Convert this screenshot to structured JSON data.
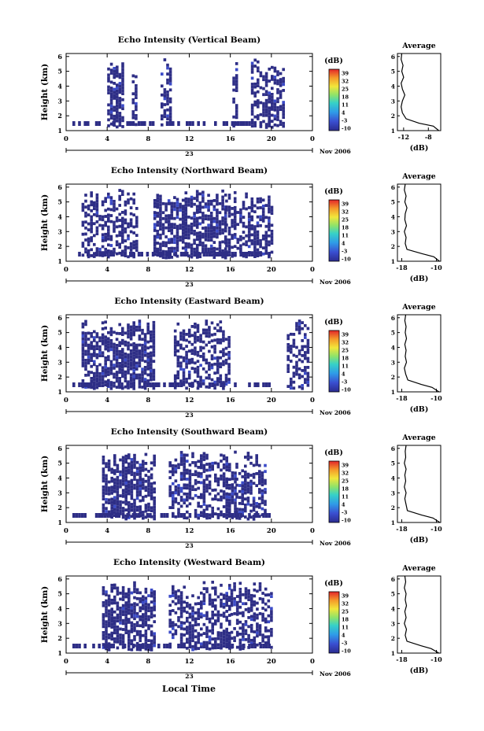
{
  "figure": {
    "bottom_xlabel": "Local Time",
    "date_label": "Nov 2006",
    "day_label": "23",
    "colorbar_unit": "(dB)",
    "colorbar_ticks": [
      "39",
      "32",
      "25",
      "18",
      "11",
      "4",
      "-3",
      "-10"
    ],
    "average_title": "Average",
    "average_xunit": "(dB)",
    "ylabel": "Height (km)"
  },
  "chart_data": [
    {
      "type": "heatmap",
      "title": "Echo Intensity (Vertical Beam)",
      "ylabel": "Height (km)",
      "xlim": [
        0,
        24
      ],
      "xticks": [
        "0",
        "4",
        "8",
        "12",
        "16",
        "20",
        "0"
      ],
      "ylim": [
        1,
        6.2
      ],
      "yticks": [
        "1",
        "2",
        "3",
        "4",
        "5",
        "6"
      ],
      "colorbar": {
        "unit": "(dB)",
        "range": [
          -10,
          39
        ]
      },
      "activity_hours": [
        [
          4.0,
          5.6
        ],
        [
          6.4,
          6.7
        ],
        [
          9.2,
          10.3
        ],
        [
          16.2,
          16.7
        ],
        [
          18.0,
          21.2
        ]
      ],
      "average": {
        "title": "Average",
        "xlabel": "(dB)",
        "xticks": [
          "-12",
          "-8"
        ],
        "xlim": [
          -13,
          -6
        ],
        "profile": [
          [
            1.0,
            -6.3
          ],
          [
            1.3,
            -7.2
          ],
          [
            1.5,
            -9.5
          ],
          [
            1.8,
            -11.6
          ],
          [
            2.2,
            -12.2
          ],
          [
            2.6,
            -12.4
          ],
          [
            3.0,
            -12.2
          ],
          [
            3.4,
            -11.8
          ],
          [
            3.8,
            -12.2
          ],
          [
            4.2,
            -12.4
          ],
          [
            4.6,
            -12.0
          ],
          [
            5.0,
            -12.3
          ],
          [
            5.4,
            -12.1
          ],
          [
            5.8,
            -12.4
          ],
          [
            6.2,
            -12.3
          ]
        ]
      }
    },
    {
      "type": "heatmap",
      "title": "Echo Intensity (Northward Beam)",
      "ylabel": "Height (km)",
      "xlim": [
        0,
        24
      ],
      "xticks": [
        "0",
        "4",
        "8",
        "12",
        "16",
        "20",
        "0"
      ],
      "ylim": [
        1,
        6.2
      ],
      "yticks": [
        "1",
        "2",
        "3",
        "4",
        "5",
        "6"
      ],
      "colorbar": {
        "unit": "(dB)",
        "range": [
          -10,
          39
        ]
      },
      "activity_hours": [
        [
          8.5,
          15.5
        ],
        [
          1.5,
          7.0
        ],
        [
          15.5,
          20.0
        ]
      ],
      "average": {
        "title": "Average",
        "xlabel": "(dB)",
        "xticks": [
          "-18",
          "-10"
        ],
        "xlim": [
          -19,
          -9
        ],
        "profile": [
          [
            1.0,
            -9.3
          ],
          [
            1.3,
            -10.6
          ],
          [
            1.5,
            -13.2
          ],
          [
            1.8,
            -16.8
          ],
          [
            2.2,
            -17.2
          ],
          [
            2.6,
            -17.0
          ],
          [
            3.0,
            -17.4
          ],
          [
            3.4,
            -16.9
          ],
          [
            3.8,
            -17.3
          ],
          [
            4.2,
            -17.2
          ],
          [
            4.6,
            -16.8
          ],
          [
            5.0,
            -17.3
          ],
          [
            5.4,
            -17.0
          ],
          [
            5.8,
            -17.4
          ],
          [
            6.2,
            -17.2
          ]
        ]
      }
    },
    {
      "type": "heatmap",
      "title": "Echo Intensity (Eastward Beam)",
      "ylabel": "Height (km)",
      "xlim": [
        0,
        24
      ],
      "xticks": [
        "0",
        "4",
        "8",
        "12",
        "16",
        "20",
        "0"
      ],
      "ylim": [
        1,
        6.2
      ],
      "yticks": [
        "1",
        "2",
        "3",
        "4",
        "5",
        "6"
      ],
      "colorbar": {
        "unit": "(dB)",
        "range": [
          -10,
          39
        ]
      },
      "activity_hours": [
        [
          1.5,
          8.5
        ],
        [
          10.5,
          16.0
        ],
        [
          21.5,
          23.5
        ]
      ],
      "average": {
        "title": "Average",
        "xlabel": "(dB)",
        "xticks": [
          "-18",
          "-10"
        ],
        "xlim": [
          -19,
          -9
        ],
        "profile": [
          [
            1.0,
            -9.4
          ],
          [
            1.3,
            -11.0
          ],
          [
            1.5,
            -13.5
          ],
          [
            1.8,
            -16.6
          ],
          [
            2.2,
            -17.1
          ],
          [
            2.6,
            -17.4
          ],
          [
            3.0,
            -16.9
          ],
          [
            3.4,
            -17.2
          ],
          [
            3.8,
            -17.0
          ],
          [
            4.2,
            -17.3
          ],
          [
            4.6,
            -16.9
          ],
          [
            5.0,
            -17.2
          ],
          [
            5.4,
            -17.0
          ],
          [
            5.8,
            -17.3
          ],
          [
            6.2,
            -17.1
          ]
        ]
      }
    },
    {
      "type": "heatmap",
      "title": "Echo Intensity (Southward Beam)",
      "ylabel": "Height (km)",
      "xlim": [
        0,
        24
      ],
      "xticks": [
        "0",
        "4",
        "8",
        "12",
        "16",
        "20",
        "0"
      ],
      "ylim": [
        1,
        6.2
      ],
      "yticks": [
        "1",
        "2",
        "3",
        "4",
        "5",
        "6"
      ],
      "colorbar": {
        "unit": "(dB)",
        "range": [
          -10,
          39
        ]
      },
      "activity_hours": [
        [
          3.5,
          8.5
        ],
        [
          10.0,
          16.5
        ],
        [
          16.5,
          19.5
        ]
      ],
      "average": {
        "title": "Average",
        "xlabel": "(dB)",
        "xticks": [
          "-18",
          "-10"
        ],
        "xlim": [
          -19,
          -9
        ],
        "profile": [
          [
            1.0,
            -9.2
          ],
          [
            1.3,
            -10.8
          ],
          [
            1.5,
            -13.4
          ],
          [
            1.8,
            -16.7
          ],
          [
            2.2,
            -17.0
          ],
          [
            2.6,
            -17.3
          ],
          [
            3.0,
            -17.0
          ],
          [
            3.4,
            -17.4
          ],
          [
            3.8,
            -17.1
          ],
          [
            4.2,
            -17.3
          ],
          [
            4.6,
            -17.0
          ],
          [
            5.0,
            -17.4
          ],
          [
            5.4,
            -17.1
          ],
          [
            5.8,
            -17.2
          ],
          [
            6.2,
            -17.0
          ]
        ]
      }
    },
    {
      "type": "heatmap",
      "title": "Echo Intensity (Westward Beam)",
      "ylabel": "Height (km)",
      "xlabel": "Local Time",
      "xlim": [
        0,
        24
      ],
      "xticks": [
        "0",
        "4",
        "8",
        "12",
        "16",
        "20",
        "0"
      ],
      "ylim": [
        1,
        6.2
      ],
      "yticks": [
        "1",
        "2",
        "3",
        "4",
        "5",
        "6"
      ],
      "colorbar": {
        "unit": "(dB)",
        "range": [
          -10,
          39
        ]
      },
      "activity_hours": [
        [
          3.5,
          8.5
        ],
        [
          10.0,
          16.0
        ],
        [
          16.0,
          20.0
        ]
      ],
      "average": {
        "title": "Average",
        "xlabel": "(dB)",
        "xticks": [
          "-18",
          "-10"
        ],
        "xlim": [
          -19,
          -9
        ],
        "profile": [
          [
            1.0,
            -9.4
          ],
          [
            1.3,
            -11.2
          ],
          [
            1.5,
            -13.6
          ],
          [
            1.8,
            -16.8
          ],
          [
            2.2,
            -17.2
          ],
          [
            2.6,
            -16.9
          ],
          [
            3.0,
            -17.4
          ],
          [
            3.4,
            -17.0
          ],
          [
            3.8,
            -17.3
          ],
          [
            4.2,
            -16.9
          ],
          [
            4.6,
            -17.2
          ],
          [
            5.0,
            -17.0
          ],
          [
            5.4,
            -17.4
          ],
          [
            5.8,
            -17.1
          ],
          [
            6.2,
            -17.3
          ]
        ]
      }
    }
  ]
}
